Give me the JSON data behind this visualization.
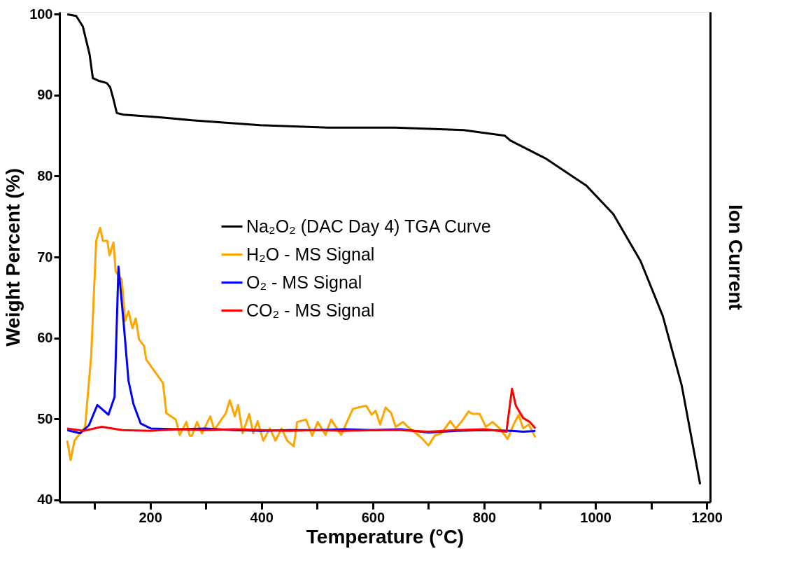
{
  "chart_data": {
    "type": "line",
    "xlabel": "Temperature (°C)",
    "ylabel": "Weight Percent (%)",
    "y2label": "Ion Current",
    "xlim": [
      37,
      1206
    ],
    "ylim": [
      39.7,
      100.3
    ],
    "xticks": [
      {
        "value": 100,
        "label": null
      },
      200,
      {
        "value": 300,
        "label": null
      },
      400,
      {
        "value": 500,
        "label": null
      },
      600,
      {
        "value": 700,
        "label": null
      },
      800,
      {
        "value": 900,
        "label": null
      },
      1000,
      {
        "value": 1100,
        "label": null
      },
      1200
    ],
    "yticks": [
      40,
      50,
      60,
      70,
      80,
      90,
      100
    ],
    "grid": false,
    "legend": "left",
    "marker": "none",
    "line_style": "solid",
    "series": [
      {
        "name": "Na₂O₂ (DAC Day 4) TGA Curve",
        "color": "#000000",
        "x": [
          51,
          67,
          79,
          91,
          97,
          107,
          122,
          128,
          134,
          140,
          152,
          213,
          275,
          397,
          519,
          641,
          763,
          837,
          847,
          910,
          984,
          1032,
          1081,
          1121,
          1155,
          1188
        ],
        "values": [
          100,
          99.8,
          98.5,
          95.1,
          92.1,
          91.8,
          91.5,
          91.0,
          89.5,
          87.8,
          87.6,
          87.3,
          86.9,
          86.3,
          86.0,
          86.0,
          85.7,
          85.0,
          84.4,
          82.2,
          78.8,
          75.3,
          69.5,
          62.7,
          54.1,
          41.9
        ]
      },
      {
        "name": "H₂O - MS Signal",
        "color": "#ffa500",
        "x": [
          51,
          57,
          64,
          83,
          94,
          103,
          110,
          115,
          123,
          127,
          134,
          138,
          149,
          155,
          161,
          168,
          174,
          180,
          189,
          193,
          223,
          229,
          246,
          253,
          265,
          271,
          275,
          284,
          293,
          308,
          315,
          336,
          343,
          352,
          358,
          366,
          378,
          385,
          393,
          403,
          415,
          425,
          436,
          446,
          458,
          464,
          480,
          491,
          501,
          515,
          525,
          543,
          564,
          574,
          588,
          598,
          605,
          613,
          623,
          633,
          641,
          654,
          663,
          674,
          688,
          700,
          711,
          723,
          739,
          749,
          760,
          772,
          779,
          792,
          803,
          815,
          828,
          842,
          853,
          862,
          870,
          880,
          892
        ],
        "values": [
          47.3,
          44.9,
          47.3,
          49,
          57.8,
          72,
          73.6,
          72,
          72,
          70.2,
          71.8,
          68.2,
          67.2,
          62.1,
          63.3,
          61.2,
          62.4,
          59.8,
          59,
          57.3,
          54.4,
          50.7,
          49.9,
          48,
          49.6,
          47.9,
          47.9,
          49.6,
          48.2,
          50.3,
          48.6,
          50.7,
          52.3,
          50.3,
          51.7,
          48.2,
          50.6,
          48.2,
          49.7,
          47.3,
          48.8,
          47.3,
          48.8,
          47.3,
          46.6,
          49.6,
          49.9,
          47.9,
          49.6,
          48,
          49.9,
          48,
          51.2,
          51.4,
          51.6,
          50.5,
          51,
          49.3,
          51.4,
          50.7,
          49,
          49.6,
          49,
          48.4,
          47.6,
          46.7,
          47.9,
          48.2,
          49.7,
          48.8,
          49.7,
          50.9,
          50.6,
          50.6,
          49,
          49.6,
          48.8,
          47.5,
          49.3,
          50.5,
          48.8,
          49.3,
          47.7
        ]
      },
      {
        "name": "O₂ - MS Signal",
        "color": "#0000ff",
        "x": [
          51,
          74,
          90,
          105,
          125,
          136,
          143,
          152,
          161,
          170,
          183,
          201,
          250,
          300,
          350,
          400,
          450,
          500,
          550,
          600,
          650,
          700,
          750,
          800,
          850,
          870,
          892
        ],
        "values": [
          48.6,
          48.2,
          49.2,
          51.7,
          50.5,
          52.7,
          68.8,
          62.1,
          54.7,
          51.8,
          49.4,
          48.8,
          48.7,
          48.8,
          48.6,
          48.5,
          48.6,
          48.6,
          48.7,
          48.6,
          48.7,
          48.3,
          48.5,
          48.6,
          48.5,
          48.4,
          48.5
        ]
      },
      {
        "name": "CO₂ - MS Signal",
        "color": "#ff0000",
        "x": [
          51,
          80,
          113,
          150,
          200,
          250,
          300,
          350,
          400,
          450,
          500,
          550,
          600,
          650,
          700,
          750,
          800,
          840,
          850,
          857,
          870,
          882,
          892
        ],
        "values": [
          48.8,
          48.5,
          49,
          48.6,
          48.5,
          48.7,
          48.6,
          48.7,
          48.6,
          48.5,
          48.6,
          48.5,
          48.6,
          48.6,
          48.4,
          48.6,
          48.7,
          48.4,
          53.7,
          51.6,
          50.1,
          49.6,
          48.8
        ]
      }
    ]
  }
}
